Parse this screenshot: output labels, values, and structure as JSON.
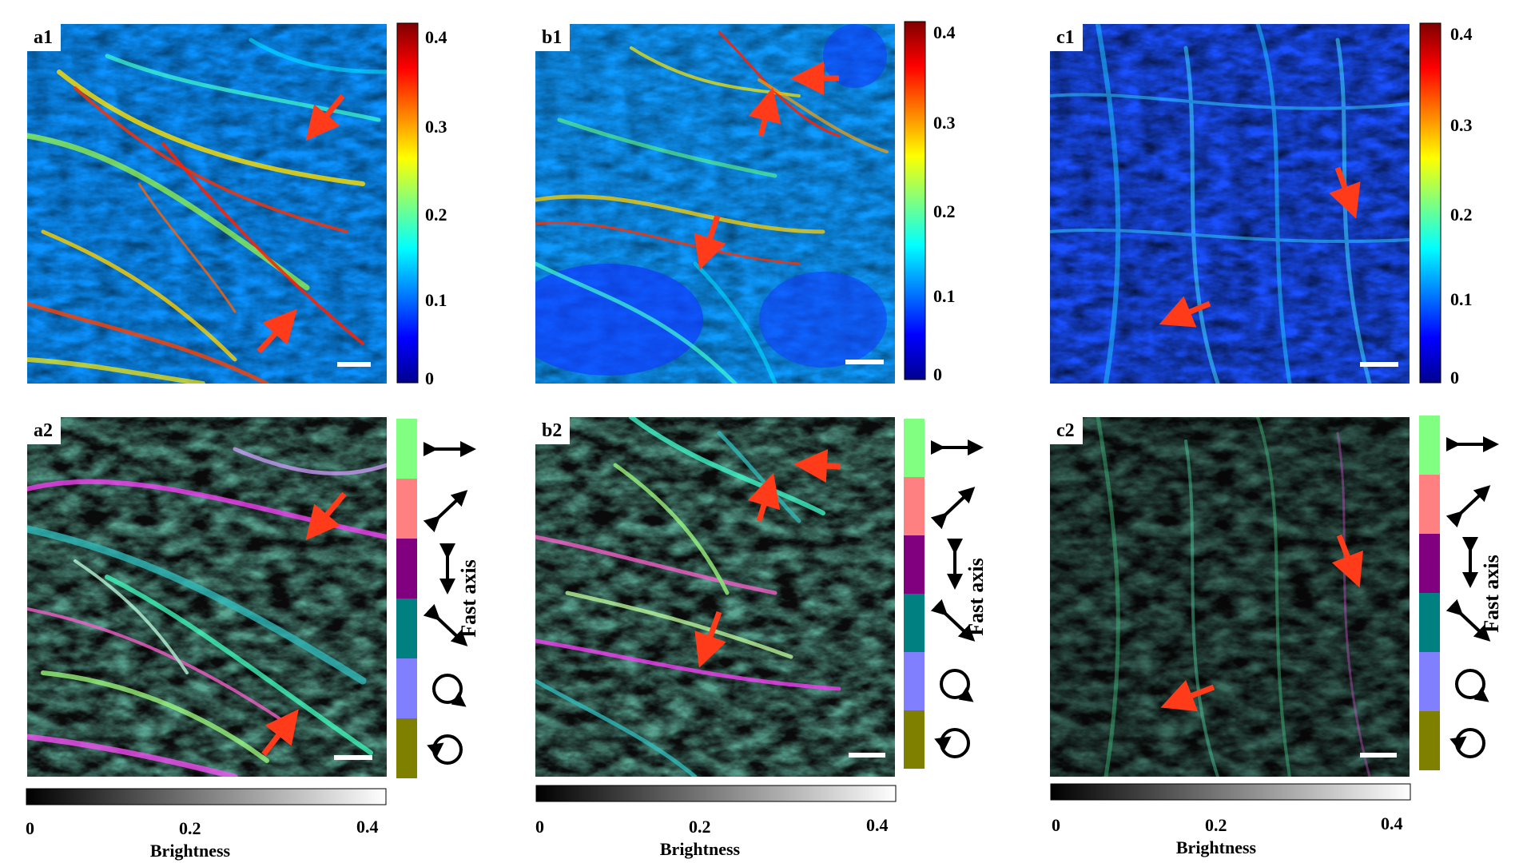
{
  "panels_top": [
    {
      "tag": "a1",
      "colorbar_ticks": [
        "0.4",
        "0.3",
        "0.2",
        "0.1",
        "0"
      ]
    },
    {
      "tag": "b1",
      "colorbar_ticks": [
        "0.4",
        "0.3",
        "0.2",
        "0.1",
        "0"
      ]
    },
    {
      "tag": "c1",
      "colorbar_ticks": [
        "0.4",
        "0.3",
        "0.2",
        "0.1",
        "0"
      ]
    }
  ],
  "panels_bottom": [
    {
      "tag": "a2"
    },
    {
      "tag": "b2"
    },
    {
      "tag": "c2"
    }
  ],
  "brightness_bar": {
    "ticks": [
      "0",
      "0.2",
      "0.4"
    ],
    "title": "Brightness"
  },
  "fast_axis_legend": {
    "title": "Fast axis",
    "swatches": [
      {
        "color": "#80ff80",
        "icon": "horizontal-double-arrow-icon"
      },
      {
        "color": "#ff8080",
        "icon": "diagonal-ne-double-arrow-icon"
      },
      {
        "color": "#800080",
        "icon": "vertical-double-arrow-icon"
      },
      {
        "color": "#008080",
        "icon": "diagonal-nw-double-arrow-icon"
      },
      {
        "color": "#8080ff",
        "icon": "clockwise-circle-icon"
      },
      {
        "color": "#808000",
        "icon": "counterclockwise-circle-icon"
      }
    ]
  },
  "colors": {
    "arrow": "#ff3b1a",
    "jet_top": "#800000",
    "jet_bottom": "#00008f"
  }
}
